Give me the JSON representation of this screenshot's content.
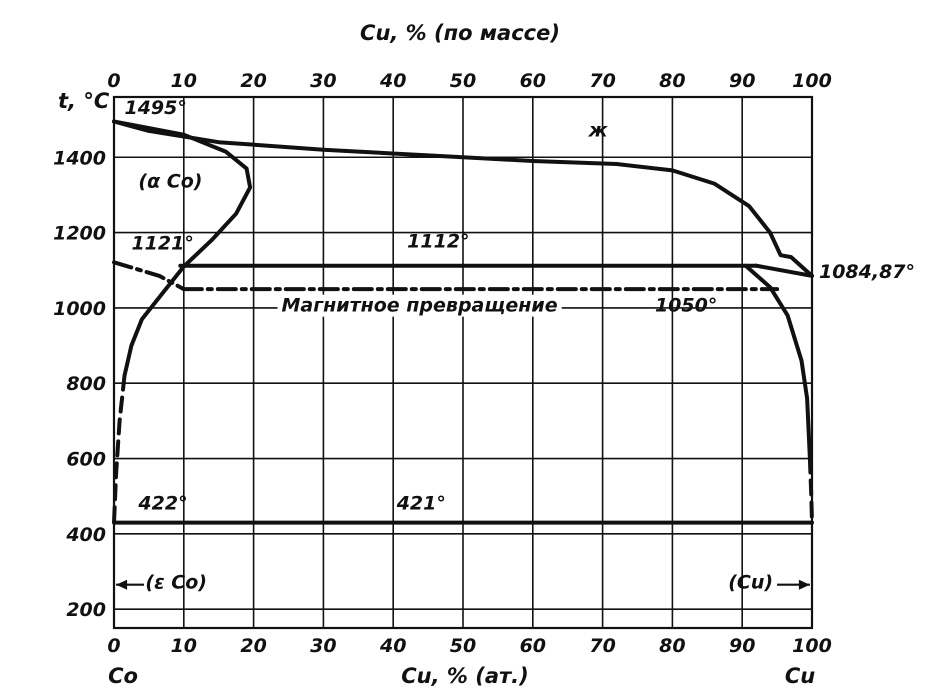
{
  "chart_data": {
    "type": "line",
    "title": "Cu, % (по массе)",
    "xlabel": "Cu, % (ат.)",
    "ylabel": "t, °C",
    "xlim": [
      0,
      100
    ],
    "ylim": [
      150,
      1560
    ],
    "grid": true,
    "x_ticks": [
      "0",
      "10",
      "20",
      "30",
      "40",
      "50",
      "60",
      "70",
      "80",
      "90",
      "100"
    ],
    "top_ticks": [
      "0",
      "10",
      "20",
      "30",
      "40",
      "50",
      "60",
      "70",
      "80",
      "90",
      "100"
    ],
    "y_ticks": [
      {
        "value": 200,
        "label": "200"
      },
      {
        "value": 400,
        "label": "400"
      },
      {
        "value": 600,
        "label": "600"
      },
      {
        "value": 800,
        "label": "800"
      },
      {
        "value": 1000,
        "label": "1000"
      },
      {
        "value": 1200,
        "label": "1200"
      },
      {
        "value": 1400,
        "label": "1400"
      }
    ],
    "endpoint_labels": {
      "left": "Co",
      "right": "Cu"
    },
    "series": [
      {
        "key": "liquidus",
        "style": "solid",
        "points": [
          [
            0,
            1495
          ],
          [
            5,
            1470
          ],
          [
            15,
            1440
          ],
          [
            30,
            1420
          ],
          [
            45,
            1405
          ],
          [
            60,
            1390
          ],
          [
            72,
            1382
          ],
          [
            80,
            1365
          ],
          [
            86,
            1330
          ],
          [
            91,
            1270
          ],
          [
            94,
            1200
          ],
          [
            95.5,
            1140
          ],
          [
            97,
            1135
          ],
          [
            100,
            1085
          ]
        ]
      },
      {
        "key": "solvus_co_upper",
        "style": "solid",
        "points": [
          [
            0,
            1495
          ],
          [
            10,
            1460
          ],
          [
            16,
            1415
          ],
          [
            19,
            1370
          ],
          [
            19.5,
            1320
          ],
          [
            17.5,
            1250
          ],
          [
            14,
            1180
          ],
          [
            10,
            1110
          ],
          [
            7,
            1040
          ],
          [
            4,
            970
          ],
          [
            2.5,
            900
          ],
          [
            1.5,
            820
          ]
        ]
      },
      {
        "key": "solvus_co_lower",
        "style": "dashed",
        "points": [
          [
            1.5,
            820
          ],
          [
            0.8,
            700
          ],
          [
            0.3,
            560
          ],
          [
            0,
            430
          ]
        ]
      },
      {
        "key": "eutectic_1112",
        "style": "solid",
        "points": [
          [
            9.5,
            1112
          ],
          [
            92,
            1112
          ]
        ]
      },
      {
        "key": "solvus_cu_branch",
        "style": "solid",
        "points": [
          [
            90.5,
            1112
          ],
          [
            94,
            1055
          ],
          [
            96.5,
            980
          ],
          [
            98.5,
            860
          ],
          [
            99.3,
            760
          ],
          [
            99.7,
            600
          ]
        ]
      },
      {
        "key": "solvus_cu_lower",
        "style": "dashed",
        "points": [
          [
            99.7,
            600
          ],
          [
            99.9,
            500
          ],
          [
            100,
            430
          ]
        ]
      },
      {
        "key": "solidus_cu",
        "style": "solid",
        "points": [
          [
            92,
            1112
          ],
          [
            100,
            1085
          ]
        ]
      },
      {
        "key": "magnetic_left",
        "style": "dashdot",
        "points": [
          [
            0,
            1121
          ],
          [
            6.5,
            1085
          ],
          [
            10,
            1050
          ]
        ]
      },
      {
        "key": "magnetic_1050",
        "style": "dashdot",
        "points": [
          [
            10,
            1050
          ],
          [
            95,
            1050
          ]
        ]
      },
      {
        "key": "line_421",
        "style": "solid",
        "points": [
          [
            0,
            430
          ],
          [
            100,
            430
          ]
        ]
      }
    ],
    "annotations": [
      {
        "text": "1495°",
        "x": 1.5,
        "y": 1515
      },
      {
        "text": "ж",
        "x": 68,
        "y": 1455
      },
      {
        "text": "(α Co)",
        "x": 3.5,
        "y": 1320
      },
      {
        "text": "1121°",
        "x": 2.5,
        "y": 1155
      },
      {
        "text": "1112°",
        "x": 42,
        "y": 1160
      },
      {
        "text": "1084,87°",
        "x": 101,
        "y": 1080
      },
      {
        "text": "Магнитное   превращение",
        "x": 24,
        "y": 990
      },
      {
        "text": "1050°",
        "x": 77.5,
        "y": 990
      },
      {
        "text": "422°",
        "x": 3.5,
        "y": 465
      },
      {
        "text": "421°",
        "x": 40.5,
        "y": 465
      },
      {
        "text": "(ε Co)",
        "x": 4.5,
        "y": 255
      },
      {
        "text": "(Cu)",
        "x": 88,
        "y": 255
      }
    ],
    "arrows": [
      {
        "direction": "left",
        "from": 4.3,
        "to": 0.3,
        "y": 265
      },
      {
        "direction": "right",
        "from": 95,
        "to": 99.7,
        "y": 265
      }
    ]
  }
}
